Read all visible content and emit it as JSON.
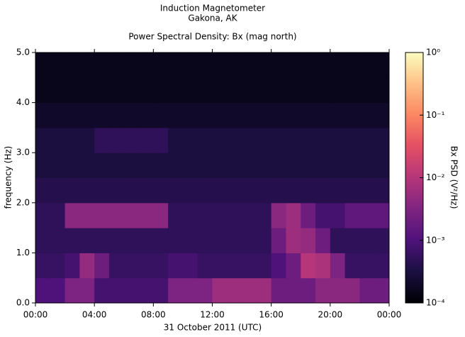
{
  "chart_data": {
    "type": "spectrogram",
    "title": "Induction Magnetometer",
    "subtitle": "Gakona, AK",
    "plot_title": "Power Spectral Density: Bx (mag north)",
    "xlabel": "31 October 2011 (UTC)",
    "ylabel": "frequency (Hz)",
    "colorbar_label": "Bx PSD (V²/Hz)",
    "colormap": "magma",
    "log_color_scale": true,
    "xlim": [
      0,
      24
    ],
    "xticks": [
      {
        "value": 0,
        "label": "00:00"
      },
      {
        "value": 4,
        "label": "04:00"
      },
      {
        "value": 8,
        "label": "08:00"
      },
      {
        "value": 12,
        "label": "12:00"
      },
      {
        "value": 16,
        "label": "16:00"
      },
      {
        "value": 20,
        "label": "20:00"
      },
      {
        "value": 24,
        "label": "00:00"
      }
    ],
    "ylim": [
      0,
      5
    ],
    "yticks": [
      {
        "value": 0,
        "label": "0.0"
      },
      {
        "value": 1,
        "label": "1.0"
      },
      {
        "value": 2,
        "label": "2.0"
      },
      {
        "value": 3,
        "label": "3.0"
      },
      {
        "value": 4,
        "label": "4.0"
      },
      {
        "value": 5,
        "label": "5.0"
      }
    ],
    "clim": [
      0.0001,
      1
    ],
    "cticks": [
      {
        "value": 0.0001,
        "label": "10⁻⁴"
      },
      {
        "value": 0.001,
        "label": "10⁻³"
      },
      {
        "value": 0.01,
        "label": "10⁻²"
      },
      {
        "value": 0.1,
        "label": "10⁻¹"
      },
      {
        "value": 1,
        "label": "10⁰"
      }
    ],
    "xbins": [
      0,
      1,
      2,
      3,
      4,
      5,
      6,
      7,
      8,
      9,
      10,
      11,
      12,
      13,
      14,
      15,
      16,
      17,
      18,
      19,
      20,
      21,
      22,
      23,
      24
    ],
    "ybins": [
      0,
      0.5,
      1,
      1.5,
      2,
      2.5,
      3,
      3.5,
      4,
      4.5,
      5
    ],
    "z": [
      [
        0.001,
        0.001,
        0.003,
        0.003,
        0.0008,
        0.0008,
        0.0008,
        0.0008,
        0.0008,
        0.003,
        0.003,
        0.003,
        0.006,
        0.006,
        0.006,
        0.006,
        0.002,
        0.002,
        0.002,
        0.004,
        0.004,
        0.004,
        0.002,
        0.002
      ],
      [
        0.0006,
        0.0006,
        0.0008,
        0.005,
        0.002,
        0.0006,
        0.0006,
        0.0006,
        0.0006,
        0.0008,
        0.0008,
        0.0006,
        0.0006,
        0.0006,
        0.0006,
        0.0006,
        0.001,
        0.002,
        0.01,
        0.008,
        0.003,
        0.0006,
        0.0006,
        0.0006
      ],
      [
        0.0005,
        0.0005,
        0.0005,
        0.0005,
        0.0005,
        0.0005,
        0.0005,
        0.0005,
        0.0005,
        0.0005,
        0.0005,
        0.0005,
        0.0005,
        0.0005,
        0.0005,
        0.0005,
        0.002,
        0.006,
        0.005,
        0.002,
        0.0005,
        0.0005,
        0.0005,
        0.0005
      ],
      [
        0.0005,
        0.0005,
        0.004,
        0.004,
        0.004,
        0.004,
        0.004,
        0.004,
        0.004,
        0.0005,
        0.0005,
        0.0005,
        0.0005,
        0.0005,
        0.0005,
        0.0005,
        0.004,
        0.006,
        0.002,
        0.0008,
        0.0008,
        0.0015,
        0.0015,
        0.0015
      ],
      [
        0.0004,
        0.0004,
        0.0004,
        0.0004,
        0.0004,
        0.0004,
        0.0004,
        0.0004,
        0.0004,
        0.0004,
        0.0004,
        0.0004,
        0.0004,
        0.0004,
        0.0004,
        0.0004,
        0.0004,
        0.0004,
        0.0004,
        0.0004,
        0.0004,
        0.0004,
        0.0004,
        0.0004
      ],
      [
        0.0003,
        0.0003,
        0.0003,
        0.0003,
        0.0003,
        0.0003,
        0.0003,
        0.0003,
        0.0003,
        0.0003,
        0.0003,
        0.0003,
        0.0003,
        0.0003,
        0.0003,
        0.0003,
        0.0003,
        0.0003,
        0.0003,
        0.0003,
        0.0003,
        0.0003,
        0.0003,
        0.0003
      ],
      [
        0.0003,
        0.0003,
        0.0003,
        0.0003,
        0.0005,
        0.0005,
        0.0005,
        0.0005,
        0.0005,
        0.0003,
        0.0003,
        0.0003,
        0.0003,
        0.0003,
        0.0003,
        0.0003,
        0.0003,
        0.0003,
        0.0003,
        0.0003,
        0.0003,
        0.0003,
        0.0003,
        0.0003
      ],
      [
        0.0002,
        0.0002,
        0.0002,
        0.0002,
        0.0002,
        0.0002,
        0.0002,
        0.0002,
        0.0002,
        0.0002,
        0.0002,
        0.0002,
        0.0002,
        0.0002,
        0.0002,
        0.0002,
        0.0002,
        0.0002,
        0.0002,
        0.0002,
        0.0002,
        0.0002,
        0.0002,
        0.0002
      ],
      [
        0.00015,
        0.00015,
        0.00015,
        0.00015,
        0.00015,
        0.00015,
        0.00015,
        0.00015,
        0.00015,
        0.00015,
        0.00015,
        0.00015,
        0.00015,
        0.00015,
        0.00015,
        0.00015,
        0.00015,
        0.00015,
        0.00015,
        0.00015,
        0.00015,
        0.00015,
        0.00015,
        0.00015
      ],
      [
        0.00015,
        0.00015,
        0.00015,
        0.00015,
        0.00015,
        0.00015,
        0.00015,
        0.00015,
        0.00015,
        0.00015,
        0.00015,
        0.00015,
        0.00015,
        0.00015,
        0.00015,
        0.00015,
        0.00015,
        0.00015,
        0.00015,
        0.00015,
        0.00015,
        0.00015,
        0.00015,
        0.00015
      ]
    ]
  }
}
